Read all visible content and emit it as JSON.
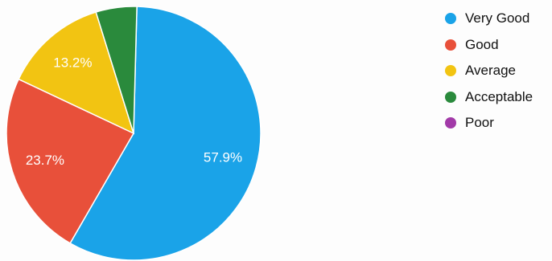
{
  "chart_data": {
    "type": "pie",
    "title": "",
    "slices": [
      {
        "label": "Very Good",
        "value": 57.9,
        "color": "#1aa3e8",
        "data_label": "57.9%"
      },
      {
        "label": "Good",
        "value": 23.7,
        "color": "#e8503a",
        "data_label": "23.7%"
      },
      {
        "label": "Average",
        "value": 13.2,
        "color": "#f2c412",
        "data_label": "13.2%"
      },
      {
        "label": "Acceptable",
        "value": 5.2,
        "color": "#2a8a3c",
        "data_label": ""
      },
      {
        "label": "Poor",
        "value": 0,
        "color": "#a23aa8",
        "data_label": ""
      }
    ],
    "legend_position": "right"
  }
}
